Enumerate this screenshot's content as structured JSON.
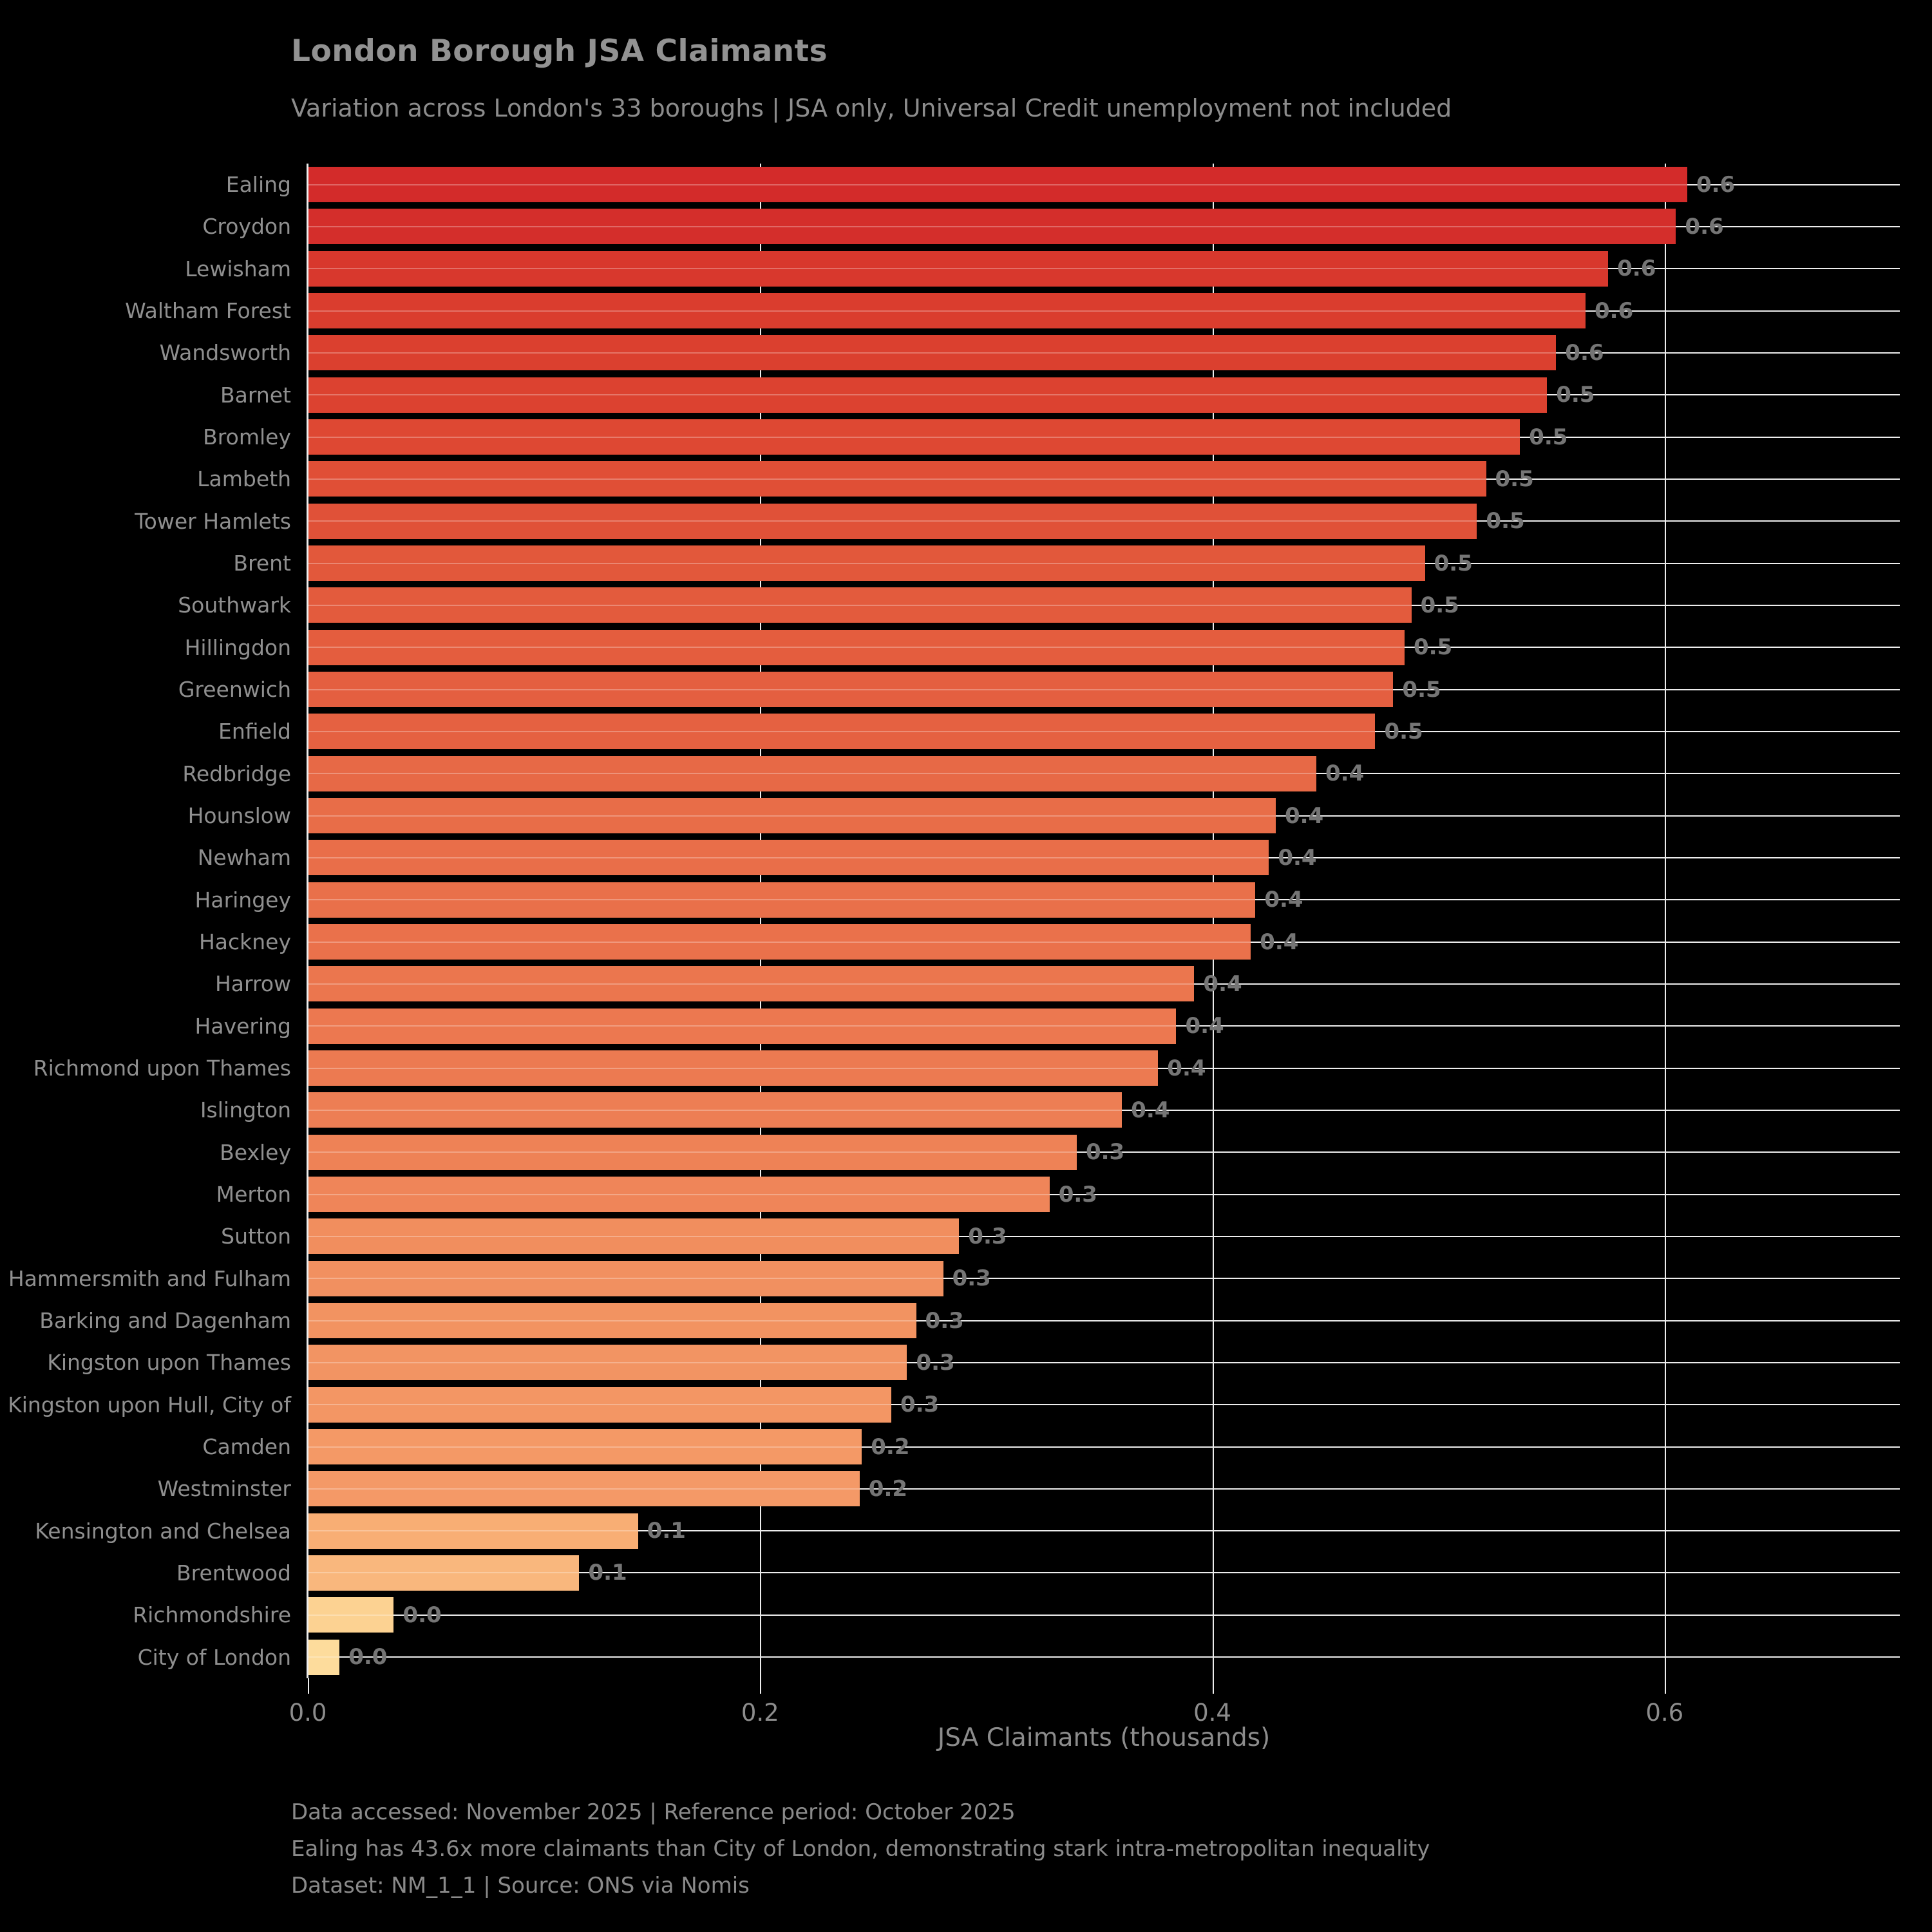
{
  "header": {
    "title": "London Borough JSA Claimants",
    "subtitle": "Variation across London's 33 boroughs | JSA only, Universal Credit unemployment not included"
  },
  "chart_data": {
    "type": "bar",
    "orientation": "horizontal",
    "title": "London Borough JSA Claimants",
    "xlabel": "JSA Claimants (thousands)",
    "ylabel": "",
    "xlim": [
      0,
      0.704
    ],
    "grid": true,
    "x_ticks": [
      {
        "value": 0.0,
        "label": "0.0"
      },
      {
        "value": 0.2,
        "label": "0.2"
      },
      {
        "value": 0.4,
        "label": "0.4"
      },
      {
        "value": 0.6,
        "label": "0.6"
      }
    ],
    "categories": [
      "Ealing",
      "Croydon",
      "Lewisham",
      "Waltham Forest",
      "Wandsworth",
      "Barnet",
      "Bromley",
      "Lambeth",
      "Tower Hamlets",
      "Brent",
      "Southwark",
      "Hillingdon",
      "Greenwich",
      "Enfield",
      "Redbridge",
      "Hounslow",
      "Newham",
      "Haringey",
      "Hackney",
      "Harrow",
      "Havering",
      "Richmond upon Thames",
      "Islington",
      "Bexley",
      "Merton",
      "Sutton",
      "Hammersmith and Fulham",
      "Barking and Dagenham",
      "Kingston upon Thames",
      "Kingston upon Hull, City of",
      "Camden",
      "Westminster",
      "Kensington and Chelsea",
      "Brentwood",
      "Richmondshire",
      "City of London"
    ],
    "values": [
      0.61,
      0.605,
      0.575,
      0.565,
      0.552,
      0.548,
      0.536,
      0.521,
      0.517,
      0.494,
      0.488,
      0.485,
      0.48,
      0.472,
      0.446,
      0.428,
      0.425,
      0.419,
      0.417,
      0.392,
      0.384,
      0.376,
      0.36,
      0.34,
      0.328,
      0.288,
      0.281,
      0.269,
      0.265,
      0.258,
      0.245,
      0.244,
      0.146,
      0.12,
      0.038,
      0.014
    ],
    "value_labels": [
      "0.6",
      "0.6",
      "0.6",
      "0.6",
      "0.6",
      "0.5",
      "0.5",
      "0.5",
      "0.5",
      "0.5",
      "0.5",
      "0.5",
      "0.5",
      "0.5",
      "0.4",
      "0.4",
      "0.4",
      "0.4",
      "0.4",
      "0.4",
      "0.4",
      "0.4",
      "0.4",
      "0.3",
      "0.3",
      "0.3",
      "0.3",
      "0.3",
      "0.3",
      "0.3",
      "0.2",
      "0.2",
      "0.1",
      "0.1",
      "0.0",
      "0.0"
    ],
    "bar_colors": [
      "#d32b2a",
      "#d42e2b",
      "#d8382d",
      "#da3d2e",
      "#db402f",
      "#dc4230",
      "#de4833",
      "#e04f36",
      "#e05138",
      "#e2583b",
      "#e35b3d",
      "#e45d3e",
      "#e45f40",
      "#e56141",
      "#e76946",
      "#e86d48",
      "#e96e49",
      "#e9704a",
      "#ea714b",
      "#eb764e",
      "#ec7850",
      "#ec7a51",
      "#ed7e54",
      "#ee8256",
      "#ef8559",
      "#f18e5e",
      "#f19060",
      "#f29361",
      "#f29463",
      "#f39664",
      "#f49966",
      "#f49967",
      "#f8ae74",
      "#f9b77d",
      "#fcd292",
      "#fddc9c"
    ],
    "legend": null
  },
  "footer": {
    "line1": "Data accessed: November 2025 | Reference period: October 2025",
    "line2": "Ealing has 43.6x more claimants than City of London, demonstrating stark intra-metropolitan inequality",
    "line3": "Dataset: NM_1_1 | Source: ONS via Nomis"
  },
  "colors": {
    "background": "#000000",
    "grid": "#ededed",
    "title_text": "#929292",
    "label_text": "#8c8c8c",
    "value_label_text": "#757575"
  }
}
